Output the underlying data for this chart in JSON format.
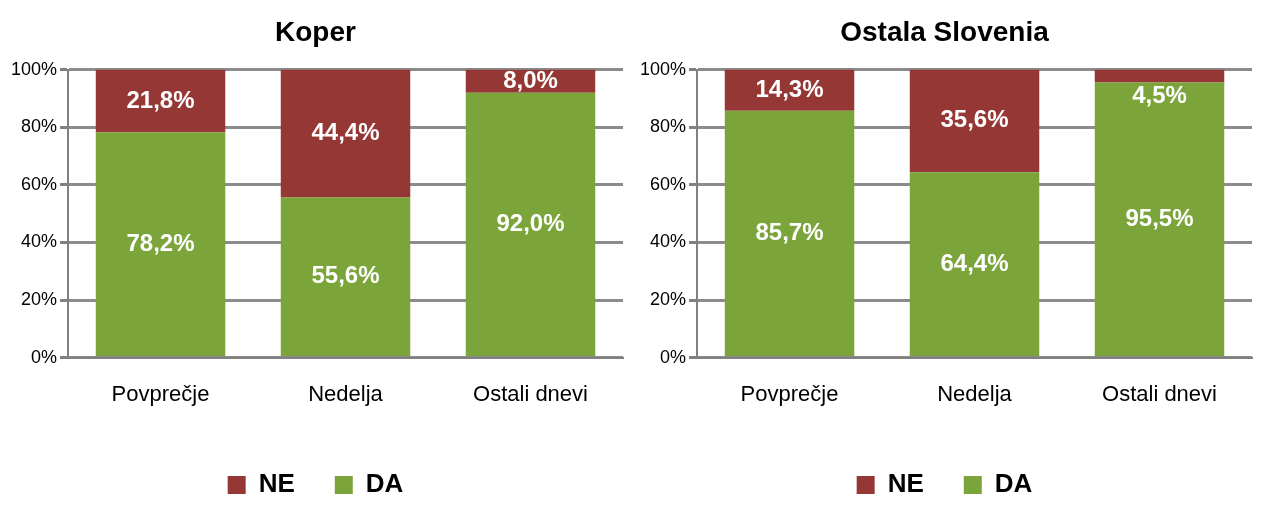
{
  "chart_data": [
    {
      "type": "bar",
      "title": "Koper",
      "categories": [
        "Povprečje",
        "Nedelja",
        "Ostali dnevi"
      ],
      "stacked": true,
      "ylim": [
        0,
        100
      ],
      "yticks": [
        {
          "value": 0,
          "label": "0%"
        },
        {
          "value": 20,
          "label": "20%"
        },
        {
          "value": 40,
          "label": "40%"
        },
        {
          "value": 60,
          "label": "60%"
        },
        {
          "value": 80,
          "label": "80%"
        },
        {
          "value": 100,
          "label": "100%"
        }
      ],
      "grid": "y",
      "legend": "bottom",
      "series": [
        {
          "name": "DA",
          "color": "#7ba53b",
          "values": [
            78.2,
            55.6,
            92.0
          ],
          "value_labels": [
            "78,2%",
            "55,6%",
            "92,0%"
          ]
        },
        {
          "name": "NE",
          "color": "#953735",
          "values": [
            21.8,
            44.4,
            8.0
          ],
          "value_labels": [
            "21,8%",
            "44,4%",
            "8,0%"
          ]
        }
      ]
    },
    {
      "type": "bar",
      "title": "Ostala Slovenia",
      "categories": [
        "Povprečje",
        "Nedelja",
        "Ostali dnevi"
      ],
      "stacked": true,
      "ylim": [
        0,
        100
      ],
      "yticks": [
        {
          "value": 0,
          "label": "0%"
        },
        {
          "value": 20,
          "label": "20%"
        },
        {
          "value": 40,
          "label": "40%"
        },
        {
          "value": 60,
          "label": "60%"
        },
        {
          "value": 80,
          "label": "80%"
        },
        {
          "value": 100,
          "label": "100%"
        }
      ],
      "grid": "y",
      "legend": "bottom",
      "series": [
        {
          "name": "DA",
          "color": "#7ba53b",
          "values": [
            85.7,
            64.4,
            95.5
          ],
          "value_labels": [
            "85,7%",
            "64,4%",
            "95,5%"
          ]
        },
        {
          "name": "NE",
          "color": "#953735",
          "values": [
            14.3,
            35.6,
            4.5
          ],
          "value_labels": [
            "14,3%",
            "35,6%",
            "4,5%"
          ]
        }
      ]
    }
  ]
}
